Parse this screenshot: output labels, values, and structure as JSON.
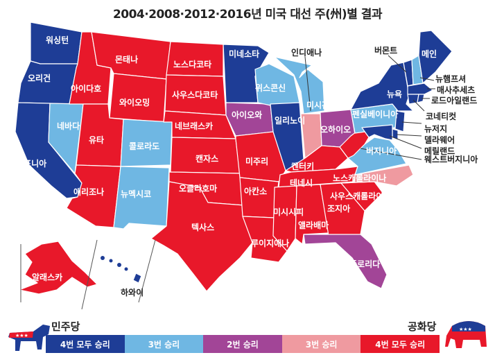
{
  "title": "2004·2008·2012·2016년 미국 대선 주(州)별 결과",
  "colors": {
    "dem4": "#1e3d96",
    "dem3": "#6fb7e3",
    "rep2": "#a24597",
    "rep3": "#ef9aa0",
    "rep4": "#e8182a",
    "border": "#ffffff"
  },
  "states": {
    "wa": "워싱턴",
    "or": "오리건",
    "ca": "캘리포니아",
    "nv": "네바다",
    "id": "아이다호",
    "mt": "몬태나",
    "wy": "와이오밍",
    "ut": "유타",
    "az": "애리조나",
    "co": "콜로라도",
    "nm": "뉴멕시코",
    "nd": "노스다코타",
    "sd": "사우스다코타",
    "ne": "네브래스카",
    "ks": "캔자스",
    "ok": "오클라호마",
    "tx": "텍사스",
    "mn": "미네소타",
    "ia": "아이오와",
    "mo": "미주리",
    "ar": "아칸소",
    "la": "루이지애나",
    "wi": "위스콘신",
    "il": "일리노이",
    "mi": "미시간",
    "in": "인디애나",
    "oh": "오하이오",
    "ky": "켄터키",
    "tn": "테네시",
    "ms": "미시시피",
    "al": "앨라배마",
    "ga": "조지아",
    "fl": "플로리다",
    "sc": "사우스캐롤라이나",
    "nc": "노스캐롤라이나",
    "va": "버지니아",
    "wv": "웨스트버지니아",
    "pa": "펜실베이니아",
    "ny": "뉴욕",
    "vt": "버몬트",
    "me": "메인",
    "nh": "뉴햄프셔",
    "ma": "매사추세츠",
    "ri": "로드아일랜드",
    "ct": "코네티컷",
    "nj": "뉴저지",
    "de": "델라웨어",
    "md": "메릴랜드",
    "ak": "알래스카",
    "hi": "하와이"
  },
  "state_results": {
    "wa": "dem4",
    "or": "dem4",
    "ca": "dem4",
    "nv": "dem3",
    "id": "rep4",
    "mt": "rep4",
    "wy": "rep4",
    "ut": "rep4",
    "az": "rep4",
    "co": "dem3",
    "nm": "dem3",
    "nd": "rep4",
    "sd": "rep4",
    "ne": "rep4",
    "ks": "rep4",
    "ok": "rep4",
    "tx": "rep4",
    "mn": "dem4",
    "ia": "rep2",
    "mo": "rep4",
    "ar": "rep4",
    "la": "rep4",
    "wi": "dem3",
    "il": "dem4",
    "mi": "dem3",
    "in": "rep3",
    "oh": "rep2",
    "ky": "rep4",
    "tn": "rep4",
    "ms": "rep4",
    "al": "rep4",
    "ga": "rep4",
    "fl": "rep2",
    "sc": "rep4",
    "nc": "rep3",
    "va": "dem3",
    "wv": "rep4",
    "pa": "dem3",
    "ny": "dem4",
    "vt": "dem4",
    "me": "dem4",
    "nh": "dem3",
    "ma": "dem4",
    "ri": "dem4",
    "ct": "dem4",
    "nj": "dem4",
    "de": "dem4",
    "md": "dem4",
    "ak": "rep4",
    "hi": "dem4"
  },
  "legend": {
    "dem_party": "민주당",
    "rep_party": "공화당",
    "items": [
      {
        "key": "dem4",
        "label": "4번 모두 승리"
      },
      {
        "key": "dem3",
        "label": "3번 승리"
      },
      {
        "key": "rep2",
        "label": "2번 승리"
      },
      {
        "key": "rep3",
        "label": "3번 승리"
      },
      {
        "key": "rep4",
        "label": "4번 모두 승리"
      }
    ]
  }
}
